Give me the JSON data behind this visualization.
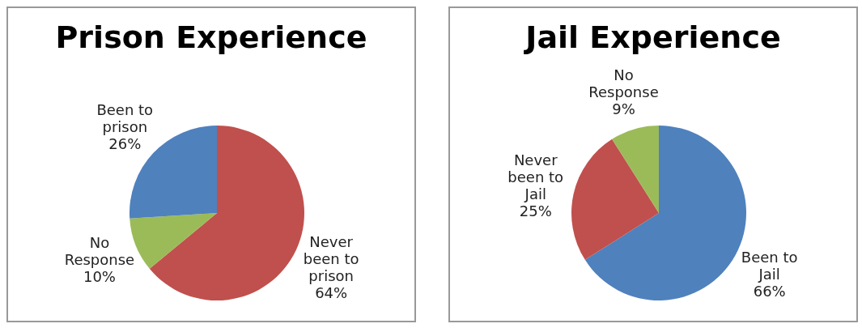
{
  "chart_data": [
    {
      "type": "pie",
      "title": "Prison Experience",
      "categories": [
        "Never been to prison",
        "No Response",
        "Been to prison"
      ],
      "values": [
        64,
        10,
        26
      ],
      "colors": [
        "#c0504d",
        "#9bbb59",
        "#4f81bd"
      ],
      "value_labels": [
        "64%",
        "10%",
        "26%"
      ],
      "legend": false
    },
    {
      "type": "pie",
      "title": "Jail Experience",
      "categories": [
        "Been to Jail",
        "Never been to Jail",
        "No Response"
      ],
      "values": [
        66,
        25,
        9
      ],
      "colors": [
        "#4f81bd",
        "#c0504d",
        "#9bbb59"
      ],
      "value_labels": [
        "66%",
        "25%",
        "9%"
      ],
      "legend": false
    }
  ]
}
